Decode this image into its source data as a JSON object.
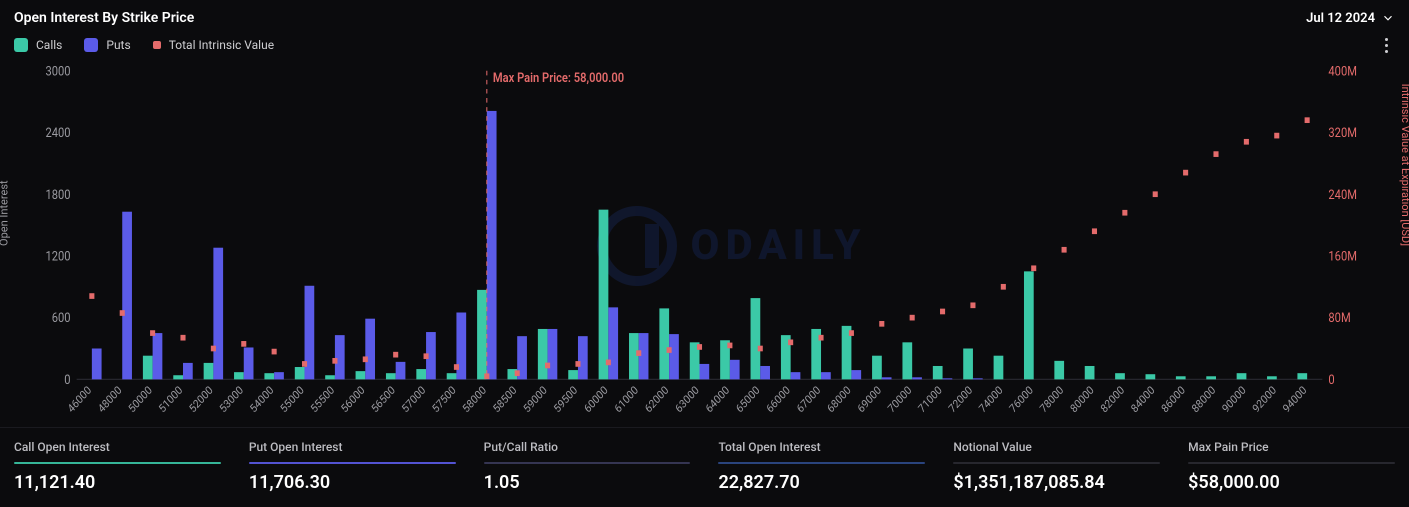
{
  "header": {
    "title": "Open Interest By Strike Price",
    "date": "Jul 12 2024"
  },
  "legend": {
    "calls": {
      "label": "Calls",
      "color": "#3bc9a7"
    },
    "puts": {
      "label": "Puts",
      "color": "#5b5be8"
    },
    "intrinsic": {
      "label": "Total Intrinsic Value",
      "color": "#e46b6b"
    }
  },
  "chart": {
    "type": "grouped-bar-with-scatter",
    "background": "#0b0b0d",
    "grid_color": "#1a1a1f",
    "xlabel_fontsize": 10,
    "ylabel_left": "Open Interest",
    "ylabel_right": "Intrinsic Value at Expiration [USD]",
    "ylim_left": [
      0,
      3000
    ],
    "ytick_step_left": 600,
    "ylim_right": [
      0,
      400000000
    ],
    "ytick_step_right": 80000000,
    "ytick_right_labels": [
      "0",
      "80M",
      "160M",
      "240M",
      "320M",
      "400M"
    ],
    "bar_group_gap": 0.35,
    "bar_width": 0.32,
    "max_pain": {
      "strike": 58000,
      "label": "Max Pain Price: 58,000.00"
    },
    "strikes": [
      46000,
      48000,
      50000,
      51000,
      52000,
      53000,
      54000,
      55000,
      55500,
      56000,
      56500,
      57000,
      57500,
      58000,
      58500,
      59000,
      59500,
      60000,
      61000,
      62000,
      63000,
      64000,
      65000,
      66000,
      67000,
      68000,
      69000,
      70000,
      71000,
      72000,
      74000,
      76000,
      78000,
      80000,
      82000,
      84000,
      86000,
      88000,
      90000,
      92000,
      94000
    ],
    "calls": [
      0,
      0,
      230,
      40,
      160,
      70,
      60,
      120,
      40,
      80,
      60,
      100,
      60,
      870,
      100,
      490,
      90,
      1650,
      450,
      690,
      360,
      380,
      790,
      430,
      490,
      520,
      230,
      360,
      130,
      300,
      230,
      1050,
      180,
      130,
      60,
      50,
      30,
      30,
      60,
      30,
      60
    ],
    "puts": [
      300,
      1630,
      450,
      160,
      1280,
      310,
      70,
      910,
      430,
      590,
      170,
      460,
      650,
      2610,
      420,
      490,
      420,
      700,
      450,
      440,
      150,
      190,
      130,
      70,
      70,
      90,
      20,
      20,
      10,
      10,
      0,
      0,
      0,
      0,
      0,
      0,
      0,
      0,
      0,
      0,
      0
    ],
    "intrinsic_usd": [
      108000000,
      86000000,
      60000000,
      54000000,
      40000000,
      46000000,
      36000000,
      20000000,
      24000000,
      26000000,
      32000000,
      30000000,
      16000000,
      4000000,
      8000000,
      18000000,
      20000000,
      22000000,
      34000000,
      38000000,
      42000000,
      44000000,
      40000000,
      48000000,
      54000000,
      60000000,
      72000000,
      80000000,
      88000000,
      96000000,
      120000000,
      144000000,
      168000000,
      192000000,
      216000000,
      240000000,
      268000000,
      292000000,
      308000000,
      316000000,
      336000000
    ],
    "watermark": "ODAILY"
  },
  "stats": [
    {
      "label": "Call Open Interest",
      "value": "11,121.40",
      "underline": "#3bc9a7"
    },
    {
      "label": "Put Open Interest",
      "value": "11,706.30",
      "underline": "#5b5be8"
    },
    {
      "label": "Put/Call Ratio",
      "value": "1.05",
      "underline": "#3a3a5a"
    },
    {
      "label": "Total Open Interest",
      "value": "22,827.70",
      "underline": "#2e4a8a"
    },
    {
      "label": "Notional Value",
      "value": "$1,351,187,085.84",
      "underline": "#2a2a32"
    },
    {
      "label": "Max Pain Price",
      "value": "$58,000.00",
      "underline": "#2a2a32"
    }
  ]
}
